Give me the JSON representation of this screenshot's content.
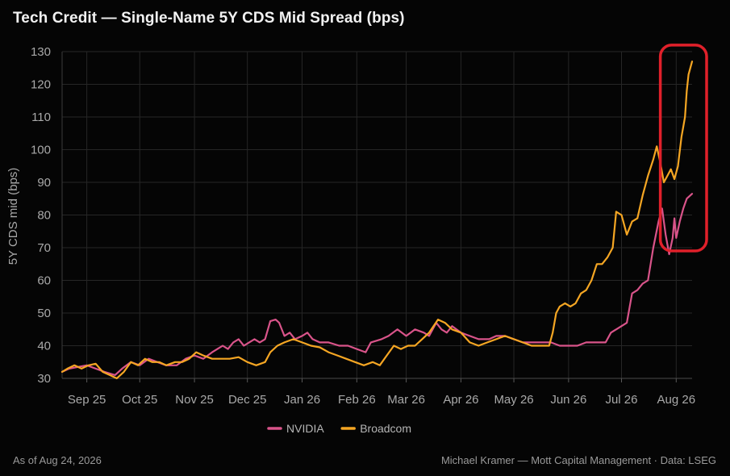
{
  "title": "Tech Credit — Single-Name 5Y CDS Mid Spread (bps)",
  "footer": {
    "as_of": "As of Aug 24, 2026",
    "credit": "Michael Kramer — Mott Capital Management · Data: LSEG"
  },
  "colors": {
    "background": "#050505",
    "grid": "#262626",
    "nvidia": "#d9548a",
    "broadcom": "#f5a623",
    "highlight": "#e0202a"
  },
  "chart_data": {
    "type": "line",
    "title": "Tech Credit — Single-Name 5Y CDS Mid Spread (bps)",
    "xlabel": "",
    "ylabel": "5Y CDS mid (bps)",
    "ylim": [
      30,
      130
    ],
    "yticks": [
      30,
      40,
      50,
      60,
      70,
      80,
      90,
      100,
      110,
      120,
      130
    ],
    "xlim": [
      "2025-09-01",
      "2026-08-24"
    ],
    "xticks": [
      {
        "date": "2025-09-15",
        "label": "Sep 25"
      },
      {
        "date": "2025-10-15",
        "label": "Oct 25"
      },
      {
        "date": "2025-11-15",
        "label": "Nov 25"
      },
      {
        "date": "2025-12-15",
        "label": "Dec 25"
      },
      {
        "date": "2026-01-15",
        "label": "Jan 26"
      },
      {
        "date": "2026-02-15",
        "label": "Feb 26"
      },
      {
        "date": "2026-03-15",
        "label": "Mar 26"
      },
      {
        "date": "2026-04-15",
        "label": "Apr 26"
      },
      {
        "date": "2026-05-15",
        "label": "May 26"
      },
      {
        "date": "2026-06-15",
        "label": "Jun 26"
      },
      {
        "date": "2026-07-15",
        "label": "Jul 26"
      },
      {
        "date": "2026-08-15",
        "label": "Aug 26"
      }
    ],
    "grid": true,
    "legend": "bottom-center",
    "highlight": {
      "shape": "rounded-rectangle",
      "x_range": [
        "2026-08-06",
        "2026-08-24"
      ],
      "y_range": [
        69,
        132
      ]
    },
    "series": [
      {
        "name": "NVIDIA",
        "color": "#d9548a",
        "points": [
          [
            "2025-09-01",
            32
          ],
          [
            "2025-09-05",
            33
          ],
          [
            "2025-09-10",
            33.5
          ],
          [
            "2025-09-15",
            34
          ],
          [
            "2025-09-20",
            33
          ],
          [
            "2025-09-25",
            32
          ],
          [
            "2025-10-01",
            31
          ],
          [
            "2025-10-05",
            33
          ],
          [
            "2025-10-10",
            35
          ],
          [
            "2025-10-15",
            34
          ],
          [
            "2025-10-20",
            36
          ],
          [
            "2025-10-25",
            35
          ],
          [
            "2025-10-30",
            34
          ],
          [
            "2025-11-05",
            34
          ],
          [
            "2025-11-10",
            36
          ],
          [
            "2025-11-15",
            37
          ],
          [
            "2025-11-20",
            36
          ],
          [
            "2025-11-25",
            38
          ],
          [
            "2025-11-28",
            39
          ],
          [
            "2025-12-01",
            40
          ],
          [
            "2025-12-04",
            39
          ],
          [
            "2025-12-07",
            41
          ],
          [
            "2025-12-10",
            42
          ],
          [
            "2025-12-13",
            40
          ],
          [
            "2025-12-16",
            41
          ],
          [
            "2025-12-19",
            42
          ],
          [
            "2025-12-22",
            41
          ],
          [
            "2025-12-25",
            42
          ],
          [
            "2025-12-28",
            47.5
          ],
          [
            "2025-12-31",
            48
          ],
          [
            "2026-01-02",
            47
          ],
          [
            "2026-01-05",
            43
          ],
          [
            "2026-01-08",
            44
          ],
          [
            "2026-01-11",
            42
          ],
          [
            "2026-01-15",
            43
          ],
          [
            "2026-01-18",
            44
          ],
          [
            "2026-01-21",
            42
          ],
          [
            "2026-01-25",
            41
          ],
          [
            "2026-01-30",
            41
          ],
          [
            "2026-02-05",
            40
          ],
          [
            "2026-02-10",
            40
          ],
          [
            "2026-02-15",
            39
          ],
          [
            "2026-02-20",
            38
          ],
          [
            "2026-02-23",
            41
          ],
          [
            "2026-02-26",
            41.5
          ],
          [
            "2026-03-01",
            42
          ],
          [
            "2026-03-05",
            43
          ],
          [
            "2026-03-10",
            45
          ],
          [
            "2026-03-15",
            43
          ],
          [
            "2026-03-20",
            45
          ],
          [
            "2026-03-25",
            44
          ],
          [
            "2026-03-28",
            43
          ],
          [
            "2026-04-01",
            47
          ],
          [
            "2026-04-04",
            45
          ],
          [
            "2026-04-07",
            44
          ],
          [
            "2026-04-10",
            46
          ],
          [
            "2026-04-15",
            44
          ],
          [
            "2026-04-20",
            43
          ],
          [
            "2026-04-25",
            42
          ],
          [
            "2026-05-01",
            42
          ],
          [
            "2026-05-05",
            43
          ],
          [
            "2026-05-10",
            43
          ],
          [
            "2026-05-15",
            42
          ],
          [
            "2026-05-20",
            41
          ],
          [
            "2026-05-25",
            41
          ],
          [
            "2026-05-30",
            41
          ],
          [
            "2026-06-05",
            41
          ],
          [
            "2026-06-10",
            40
          ],
          [
            "2026-06-15",
            40
          ],
          [
            "2026-06-20",
            40
          ],
          [
            "2026-06-25",
            41
          ],
          [
            "2026-06-30",
            41
          ],
          [
            "2026-07-03",
            41
          ],
          [
            "2026-07-06",
            41
          ],
          [
            "2026-07-09",
            44
          ],
          [
            "2026-07-12",
            45
          ],
          [
            "2026-07-15",
            46
          ],
          [
            "2026-07-18",
            47
          ],
          [
            "2026-07-21",
            56
          ],
          [
            "2026-07-24",
            57
          ],
          [
            "2026-07-27",
            59
          ],
          [
            "2026-07-30",
            60
          ],
          [
            "2026-08-02",
            70
          ],
          [
            "2026-08-05",
            78
          ],
          [
            "2026-08-07",
            82
          ],
          [
            "2026-08-09",
            74
          ],
          [
            "2026-08-11",
            68
          ],
          [
            "2026-08-13",
            73
          ],
          [
            "2026-08-14",
            79
          ],
          [
            "2026-08-15",
            73
          ],
          [
            "2026-08-17",
            78
          ],
          [
            "2026-08-19",
            82
          ],
          [
            "2026-08-21",
            85
          ],
          [
            "2026-08-23",
            86
          ],
          [
            "2026-08-24",
            86.5
          ]
        ]
      },
      {
        "name": "Broadcom",
        "color": "#f5a623",
        "points": [
          [
            "2025-09-01",
            32
          ],
          [
            "2025-09-04",
            33
          ],
          [
            "2025-09-08",
            34
          ],
          [
            "2025-09-12",
            33
          ],
          [
            "2025-09-16",
            34
          ],
          [
            "2025-09-20",
            34.5
          ],
          [
            "2025-09-24",
            32
          ],
          [
            "2025-09-28",
            31
          ],
          [
            "2025-10-02",
            30
          ],
          [
            "2025-10-06",
            32
          ],
          [
            "2025-10-10",
            35
          ],
          [
            "2025-10-14",
            34
          ],
          [
            "2025-10-18",
            36
          ],
          [
            "2025-10-22",
            35
          ],
          [
            "2025-10-26",
            35
          ],
          [
            "2025-10-30",
            34
          ],
          [
            "2025-11-04",
            35
          ],
          [
            "2025-11-08",
            35
          ],
          [
            "2025-11-12",
            36
          ],
          [
            "2025-11-16",
            38
          ],
          [
            "2025-11-20",
            37
          ],
          [
            "2025-11-25",
            36
          ],
          [
            "2025-11-30",
            36
          ],
          [
            "2025-12-05",
            36
          ],
          [
            "2025-12-10",
            36.5
          ],
          [
            "2025-12-15",
            35
          ],
          [
            "2025-12-20",
            34
          ],
          [
            "2025-12-25",
            35
          ],
          [
            "2025-12-28",
            38
          ],
          [
            "2026-01-01",
            40
          ],
          [
            "2026-01-05",
            41
          ],
          [
            "2026-01-10",
            42
          ],
          [
            "2026-01-15",
            41
          ],
          [
            "2026-01-20",
            40
          ],
          [
            "2026-01-25",
            39.5
          ],
          [
            "2026-01-30",
            38
          ],
          [
            "2026-02-04",
            37
          ],
          [
            "2026-02-09",
            36
          ],
          [
            "2026-02-14",
            35
          ],
          [
            "2026-02-19",
            34
          ],
          [
            "2026-02-24",
            35
          ],
          [
            "2026-02-28",
            34
          ],
          [
            "2026-03-04",
            37
          ],
          [
            "2026-03-08",
            40
          ],
          [
            "2026-03-12",
            39
          ],
          [
            "2026-03-16",
            40
          ],
          [
            "2026-03-20",
            40
          ],
          [
            "2026-03-24",
            42
          ],
          [
            "2026-03-28",
            44
          ],
          [
            "2026-04-02",
            48
          ],
          [
            "2026-04-06",
            47
          ],
          [
            "2026-04-10",
            45
          ],
          [
            "2026-04-15",
            44
          ],
          [
            "2026-04-20",
            41
          ],
          [
            "2026-04-25",
            40
          ],
          [
            "2026-04-30",
            41
          ],
          [
            "2026-05-05",
            42
          ],
          [
            "2026-05-10",
            43
          ],
          [
            "2026-05-15",
            42
          ],
          [
            "2026-05-20",
            41
          ],
          [
            "2026-05-25",
            40
          ],
          [
            "2026-05-31",
            40
          ],
          [
            "2026-06-04",
            40
          ],
          [
            "2026-06-06",
            44
          ],
          [
            "2026-06-08",
            50
          ],
          [
            "2026-06-10",
            52
          ],
          [
            "2026-06-13",
            53
          ],
          [
            "2026-06-16",
            52
          ],
          [
            "2026-06-19",
            53
          ],
          [
            "2026-06-22",
            56
          ],
          [
            "2026-06-25",
            57
          ],
          [
            "2026-06-28",
            60
          ],
          [
            "2026-07-01",
            65
          ],
          [
            "2026-07-04",
            65
          ],
          [
            "2026-07-07",
            67
          ],
          [
            "2026-07-10",
            70
          ],
          [
            "2026-07-12",
            81
          ],
          [
            "2026-07-15",
            80
          ],
          [
            "2026-07-18",
            74
          ],
          [
            "2026-07-21",
            78
          ],
          [
            "2026-07-24",
            79
          ],
          [
            "2026-07-27",
            86
          ],
          [
            "2026-07-30",
            92
          ],
          [
            "2026-08-02",
            97
          ],
          [
            "2026-08-04",
            101
          ],
          [
            "2026-08-06",
            96
          ],
          [
            "2026-08-08",
            90
          ],
          [
            "2026-08-10",
            92
          ],
          [
            "2026-08-12",
            94
          ],
          [
            "2026-08-14",
            91
          ],
          [
            "2026-08-16",
            95
          ],
          [
            "2026-08-18",
            104
          ],
          [
            "2026-08-19",
            107
          ],
          [
            "2026-08-20",
            110
          ],
          [
            "2026-08-21",
            118
          ],
          [
            "2026-08-22",
            123
          ],
          [
            "2026-08-23",
            125
          ],
          [
            "2026-08-24",
            127
          ]
        ]
      }
    ]
  }
}
